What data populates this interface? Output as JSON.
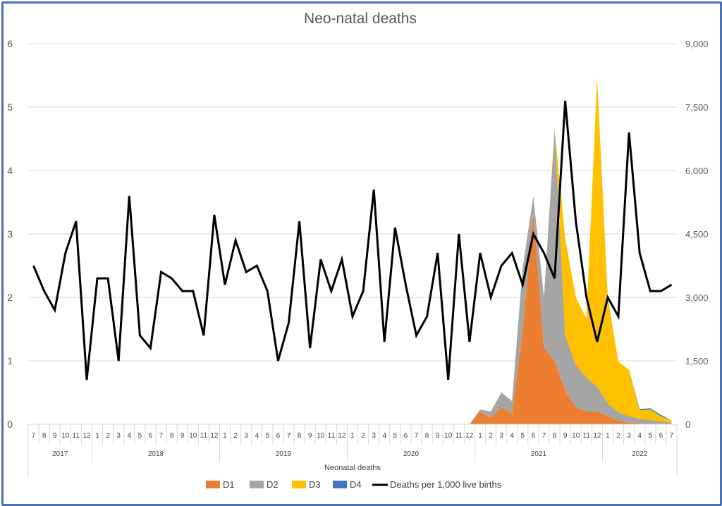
{
  "chart_data": {
    "type": "area",
    "title": "Neo-natal deaths",
    "xlabel": "Neonatal deaths",
    "ylabel": "",
    "ylim": [
      0,
      6
    ],
    "y2lim": [
      0,
      9000
    ],
    "y_ticks": [
      "0",
      "1",
      "2",
      "3",
      "4",
      "5",
      "6"
    ],
    "y2_ticks": [
      "0",
      "1,500",
      "3,000",
      "4,500",
      "6,000",
      "7,500",
      "9,000"
    ],
    "months": [
      "7",
      "8",
      "9",
      "10",
      "11",
      "12",
      "1",
      "2",
      "3",
      "4",
      "5",
      "6",
      "7",
      "8",
      "9",
      "10",
      "11",
      "12",
      "1",
      "2",
      "3",
      "4",
      "5",
      "6",
      "7",
      "8",
      "9",
      "10",
      "11",
      "12",
      "1",
      "2",
      "3",
      "4",
      "5",
      "6",
      "7",
      "8",
      "9",
      "10",
      "11",
      "12",
      "1",
      "2",
      "3",
      "4",
      "5",
      "6",
      "7",
      "8",
      "9",
      "10",
      "11",
      "12",
      "1",
      "2",
      "3",
      "4",
      "5",
      "6",
      "7"
    ],
    "years": [
      {
        "label": "2017",
        "count": 6
      },
      {
        "label": "2018",
        "count": 12
      },
      {
        "label": "2019",
        "count": 12
      },
      {
        "label": "2020",
        "count": 12
      },
      {
        "label": "2021",
        "count": 12
      },
      {
        "label": "2022",
        "count": 7
      }
    ],
    "series": [
      {
        "name": "D1",
        "axis": "right",
        "stack": true,
        "color": "#ed7d31",
        "values": [
          0,
          0,
          0,
          0,
          0,
          0,
          0,
          0,
          0,
          0,
          0,
          0,
          0,
          0,
          0,
          0,
          0,
          0,
          0,
          0,
          0,
          0,
          0,
          0,
          0,
          0,
          0,
          0,
          0,
          0,
          0,
          0,
          0,
          0,
          0,
          0,
          0,
          0,
          0,
          0,
          0,
          0,
          300,
          150,
          400,
          250,
          2200,
          5000,
          1800,
          1500,
          800,
          400,
          300,
          300,
          200,
          80,
          40,
          30,
          20,
          20,
          10
        ]
      },
      {
        "name": "D2",
        "axis": "right",
        "stack": true,
        "color": "#a5a5a5",
        "values": [
          0,
          0,
          0,
          0,
          0,
          0,
          0,
          0,
          0,
          0,
          0,
          0,
          0,
          0,
          0,
          0,
          0,
          0,
          0,
          0,
          0,
          0,
          0,
          0,
          0,
          0,
          0,
          0,
          0,
          0,
          0,
          0,
          0,
          0,
          0,
          0,
          0,
          0,
          0,
          0,
          0,
          0,
          50,
          150,
          350,
          300,
          1500,
          400,
          1200,
          5500,
          1300,
          1000,
          800,
          600,
          300,
          200,
          150,
          100,
          80,
          50,
          30
        ]
      },
      {
        "name": "D3",
        "axis": "right",
        "stack": true,
        "color": "#ffc000",
        "values": [
          0,
          0,
          0,
          0,
          0,
          0,
          0,
          0,
          0,
          0,
          0,
          0,
          0,
          0,
          0,
          0,
          0,
          0,
          0,
          0,
          0,
          0,
          0,
          0,
          0,
          0,
          0,
          0,
          0,
          0,
          0,
          0,
          0,
          0,
          0,
          0,
          0,
          0,
          0,
          0,
          0,
          0,
          0,
          0,
          0,
          0,
          0,
          0,
          0,
          0,
          2300,
          1600,
          1400,
          7300,
          2500,
          1200,
          1100,
          200,
          250,
          120,
          50
        ]
      },
      {
        "name": "D4",
        "axis": "right",
        "stack": true,
        "color": "#4472c4",
        "values": [
          0,
          0,
          0,
          0,
          0,
          0,
          0,
          0,
          0,
          0,
          0,
          0,
          0,
          0,
          0,
          0,
          0,
          0,
          0,
          0,
          0,
          0,
          0,
          0,
          0,
          0,
          0,
          0,
          0,
          0,
          0,
          0,
          0,
          0,
          0,
          0,
          0,
          0,
          0,
          0,
          0,
          0,
          0,
          0,
          0,
          0,
          0,
          0,
          0,
          0,
          0,
          0,
          0,
          0,
          0,
          0,
          0,
          30,
          30,
          30,
          0
        ]
      },
      {
        "name": "Deaths per 1,000 live births",
        "axis": "left",
        "type": "line",
        "color": "#000000",
        "values": [
          2.5,
          2.1,
          1.8,
          2.7,
          3.2,
          0.7,
          2.3,
          2.3,
          1.0,
          3.6,
          1.4,
          1.2,
          2.4,
          2.3,
          2.1,
          2.1,
          1.4,
          3.3,
          2.2,
          2.9,
          2.4,
          2.5,
          2.1,
          1.0,
          1.6,
          3.2,
          1.2,
          2.6,
          2.1,
          2.6,
          1.7,
          2.1,
          3.7,
          1.3,
          3.1,
          2.2,
          1.4,
          1.7,
          2.7,
          0.7,
          3.0,
          1.3,
          2.7,
          2.0,
          2.5,
          2.7,
          2.2,
          3.0,
          2.7,
          2.3,
          5.1,
          3.2,
          2.0,
          1.3,
          2.0,
          1.7,
          4.6,
          2.7,
          2.1,
          2.1,
          2.2
        ]
      }
    ],
    "legend": [
      "D1",
      "D2",
      "D3",
      "D4",
      "Deaths per 1,000 live births"
    ],
    "legend_position": "bottom"
  }
}
